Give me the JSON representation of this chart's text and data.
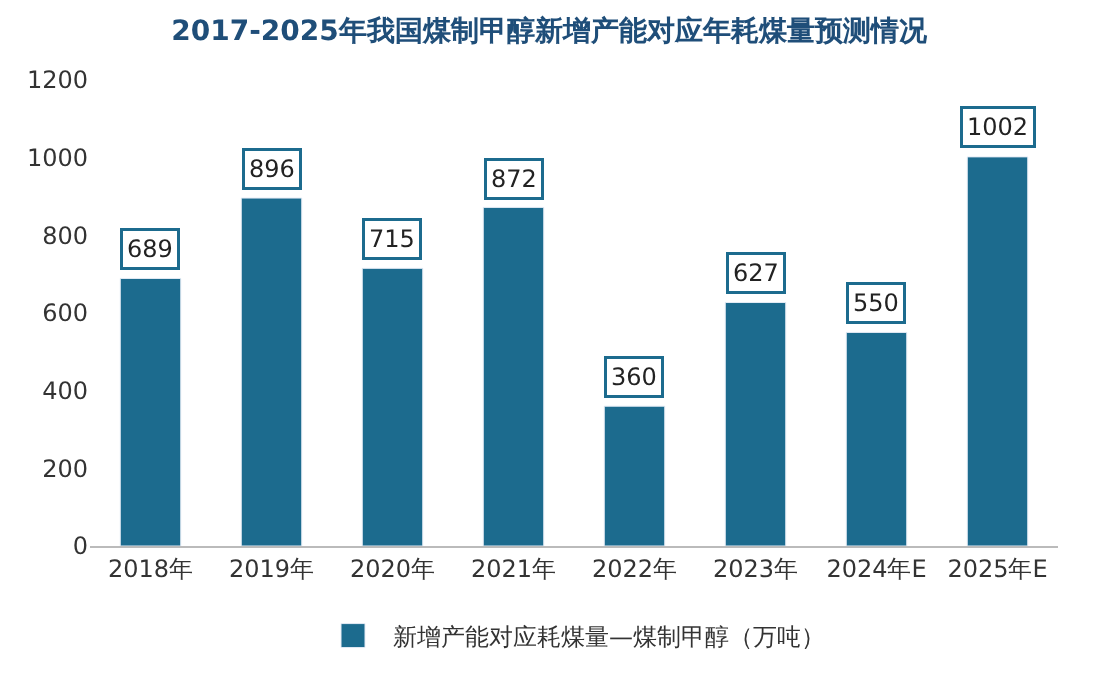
{
  "chart_data": {
    "type": "bar",
    "title": "2017-2025年我国煤制甲醇新增产能对应年耗煤量预测情况",
    "categories": [
      "2018年",
      "2019年",
      "2020年",
      "2021年",
      "2022年",
      "2023年",
      "2024年E",
      "2025年E"
    ],
    "series": [
      {
        "name": "新增产能对应耗煤量—煤制甲醇（万吨）",
        "color": "#1c6b8e",
        "values": [
          689,
          896,
          715,
          872,
          360,
          627,
          550,
          1002
        ]
      }
    ],
    "ylim": [
      0,
      1200
    ],
    "yticks": [
      0,
      200,
      400,
      600,
      800,
      1000,
      1200
    ],
    "legend": "bottom",
    "data_labels": true
  }
}
